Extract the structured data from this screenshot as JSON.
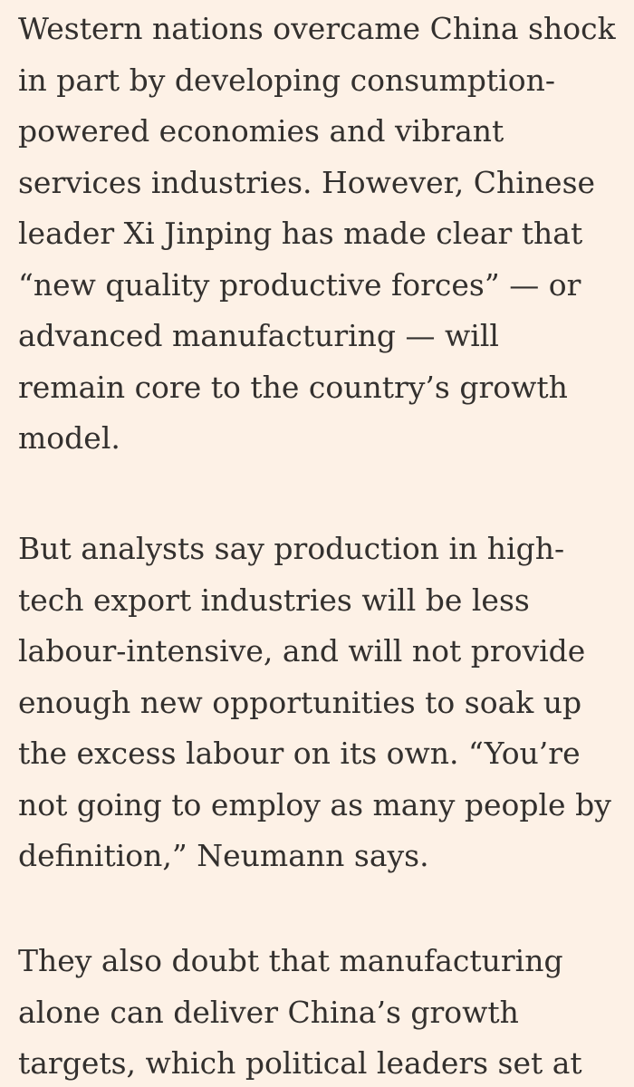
{
  "article": {
    "paragraphs": [
      {
        "lines": [
          "Western nations overcame China shock",
          "in part by developing consumption-",
          "powered economies and vibrant",
          "services industries. However, Chinese",
          "leader Xi Jinping has made clear that",
          "“new quality productive forces” — or",
          "advanced manufacturing — will",
          "remain core to the country’s growth",
          "model."
        ]
      },
      {
        "lines": [
          "But analysts say production in high-",
          "tech export industries will be less",
          "labour-intensive, and will not provide",
          "enough new opportunities to soak up",
          "the excess labour on its own. “You’re",
          "not going to employ as many people by",
          "definition,” Neumann says."
        ]
      },
      {
        "lines": [
          "They also doubt that manufacturing",
          "alone can deliver China’s growth",
          "targets, which political leaders set at"
        ]
      }
    ]
  }
}
